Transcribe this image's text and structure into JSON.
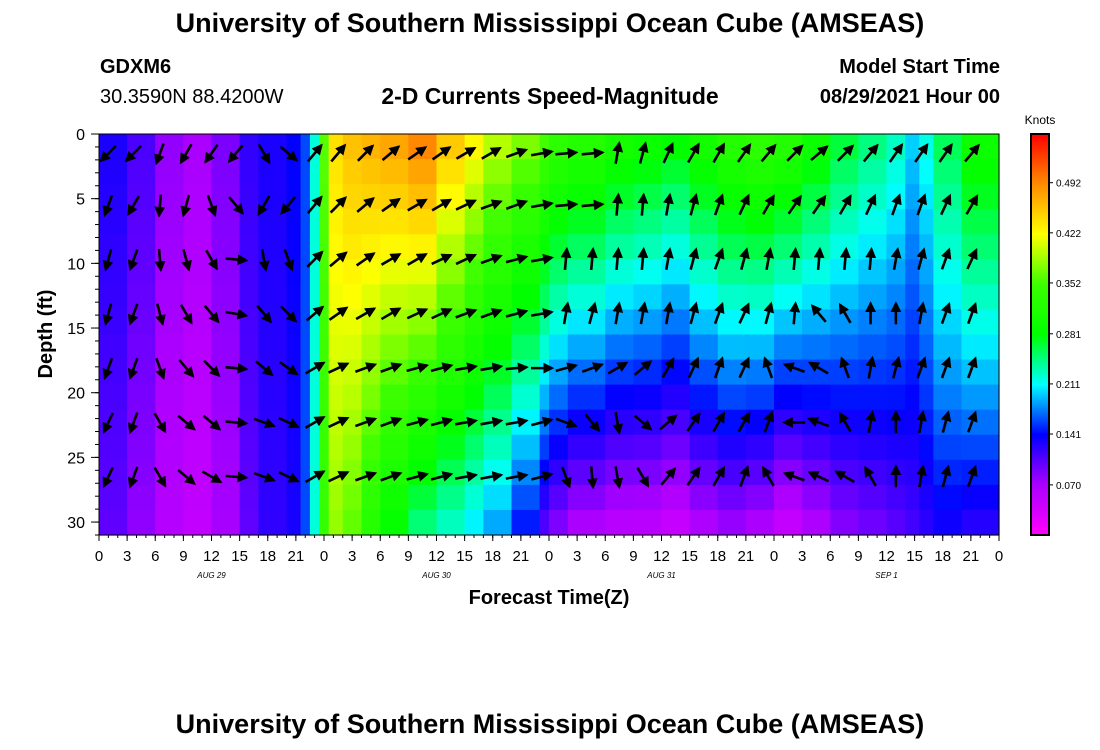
{
  "header": {
    "title_top": "University of Southern Mississippi Ocean Cube (AMSEAS)",
    "station_id": "GDXM6",
    "coordinates": "30.3590N  88.4200W",
    "plot_title": "2-D Currents Speed-Magnitude",
    "model_label": "Model Start Time",
    "model_time": "08/29/2021 Hour 00",
    "title_bottom": "University of Southern Mississippi Ocean Cube (AMSEAS)"
  },
  "chart_data": {
    "type": "heatmap",
    "title": "2-D Currents Speed-Magnitude",
    "xlabel": "Forecast Time(Z)",
    "ylabel": "Depth (ft)",
    "x_hours_range": [
      0,
      96
    ],
    "ylim": [
      0,
      31
    ],
    "y_inverted": true,
    "x_ticks": [
      "0",
      "3",
      "6",
      "9",
      "12",
      "15",
      "18",
      "21",
      "0",
      "3",
      "6",
      "9",
      "12",
      "15",
      "18",
      "21",
      "0",
      "3",
      "6",
      "9",
      "12",
      "15",
      "18",
      "21",
      "0",
      "3",
      "6",
      "9",
      "12",
      "15",
      "18",
      "21",
      "0"
    ],
    "y_ticks": [
      "0",
      "5",
      "10",
      "15",
      "20",
      "25",
      "30"
    ],
    "date_labels": [
      {
        "label": "AUG 29",
        "hour": 12
      },
      {
        "label": "AUG 30",
        "hour": 36
      },
      {
        "label": "AUG 31",
        "hour": 60
      },
      {
        "label": "SEP 1",
        "hour": 84
      }
    ],
    "colorbar": {
      "unit": "Knots",
      "range": [
        0,
        0.56
      ],
      "tick_labels": [
        "0.492",
        "0.422",
        "0.352",
        "0.281",
        "0.211",
        "0.141",
        "0.070"
      ],
      "tick_values": [
        0.492,
        0.422,
        0.352,
        0.281,
        0.211,
        0.141,
        0.07
      ]
    },
    "speed_columns": {
      "hours": [
        0,
        3,
        6,
        9,
        12,
        15,
        17,
        20,
        21.5,
        22.5,
        23.5,
        24.5,
        26,
        28,
        30,
        33,
        36,
        39,
        41,
        44,
        47,
        48,
        50,
        54,
        57,
        60,
        63,
        66,
        69,
        72,
        75,
        78,
        81,
        84,
        86,
        87.5,
        89,
        92,
        96
      ],
      "surface_knots": [
        0.13,
        0.11,
        0.08,
        0.07,
        0.09,
        0.12,
        0.13,
        0.14,
        0.16,
        0.22,
        0.36,
        0.44,
        0.46,
        0.47,
        0.48,
        0.5,
        0.46,
        0.43,
        0.4,
        0.38,
        0.36,
        0.34,
        0.33,
        0.31,
        0.3,
        0.29,
        0.31,
        0.33,
        0.34,
        0.33,
        0.3,
        0.27,
        0.25,
        0.23,
        0.2,
        0.22,
        0.26,
        0.3,
        0.32
      ],
      "bottom_knots": [
        0.1,
        0.08,
        0.06,
        0.05,
        0.07,
        0.1,
        0.12,
        0.13,
        0.16,
        0.22,
        0.34,
        0.38,
        0.36,
        0.32,
        0.28,
        0.24,
        0.22,
        0.2,
        0.18,
        0.14,
        0.1,
        0.08,
        0.06,
        0.05,
        0.05,
        0.04,
        0.06,
        0.07,
        0.06,
        0.04,
        0.06,
        0.08,
        0.09,
        0.1,
        0.11,
        0.12,
        0.13,
        0.12,
        0.11
      ]
    },
    "current_vectors": {
      "hours": [
        1,
        3.7,
        6.5,
        9.3,
        12,
        14.6,
        17.6,
        20.2,
        23,
        25.5,
        28.4,
        31.1,
        33.9,
        36.5,
        39.1,
        41.8,
        44.5,
        47.2,
        49.8,
        52.6,
        55.3,
        58,
        60.7,
        63.4,
        66.1,
        68.8,
        71.4,
        74.2,
        76.8,
        79.6,
        82.3,
        85,
        87.7,
        90.3,
        93.1
      ],
      "depths_ft": [
        1.5,
        5.5,
        9.7,
        13.9,
        18.1,
        22.3,
        26.5
      ],
      "directions_deg": [
        [
          225,
          225,
          200,
          210,
          215,
          220,
          150,
          130,
          40,
          40,
          45,
          50,
          55,
          55,
          60,
          60,
          70,
          80,
          85,
          85,
          10,
          15,
          25,
          30,
          30,
          35,
          40,
          45,
          50,
          45,
          40,
          35,
          35,
          35,
          40
        ],
        [
          200,
          210,
          185,
          195,
          160,
          140,
          210,
          220,
          40,
          45,
          50,
          55,
          60,
          60,
          65,
          70,
          70,
          80,
          85,
          85,
          5,
          5,
          10,
          15,
          20,
          25,
          30,
          35,
          35,
          30,
          25,
          20,
          20,
          25,
          30
        ],
        [
          195,
          200,
          175,
          165,
          150,
          95,
          170,
          160,
          45,
          50,
          55,
          60,
          60,
          65,
          65,
          70,
          75,
          80,
          5,
          5,
          5,
          5,
          10,
          15,
          20,
          15,
          10,
          5,
          5,
          5,
          5,
          10,
          15,
          20,
          25
        ],
        [
          195,
          200,
          165,
          150,
          140,
          100,
          140,
          135,
          50,
          55,
          60,
          60,
          65,
          65,
          70,
          70,
          75,
          80,
          10,
          15,
          10,
          10,
          10,
          15,
          20,
          25,
          15,
          5,
          320,
          330,
          0,
          0,
          10,
          20,
          20
        ],
        [
          200,
          200,
          160,
          140,
          135,
          95,
          130,
          125,
          60,
          65,
          70,
          70,
          75,
          75,
          80,
          80,
          85,
          90,
          75,
          70,
          60,
          50,
          30,
          25,
          20,
          25,
          340,
          290,
          300,
          340,
          10,
          15,
          20,
          20,
          20
        ],
        [
          205,
          200,
          150,
          130,
          130,
          95,
          110,
          115,
          60,
          65,
          70,
          70,
          75,
          75,
          80,
          80,
          80,
          75,
          110,
          140,
          170,
          130,
          50,
          35,
          30,
          30,
          20,
          270,
          290,
          330,
          10,
          0,
          10,
          15,
          20
        ],
        [
          205,
          200,
          150,
          130,
          120,
          95,
          110,
          115,
          60,
          65,
          70,
          70,
          75,
          75,
          80,
          80,
          80,
          75,
          160,
          175,
          170,
          150,
          40,
          35,
          30,
          20,
          330,
          290,
          295,
          300,
          330,
          0,
          10,
          15,
          20
        ]
      ]
    }
  }
}
